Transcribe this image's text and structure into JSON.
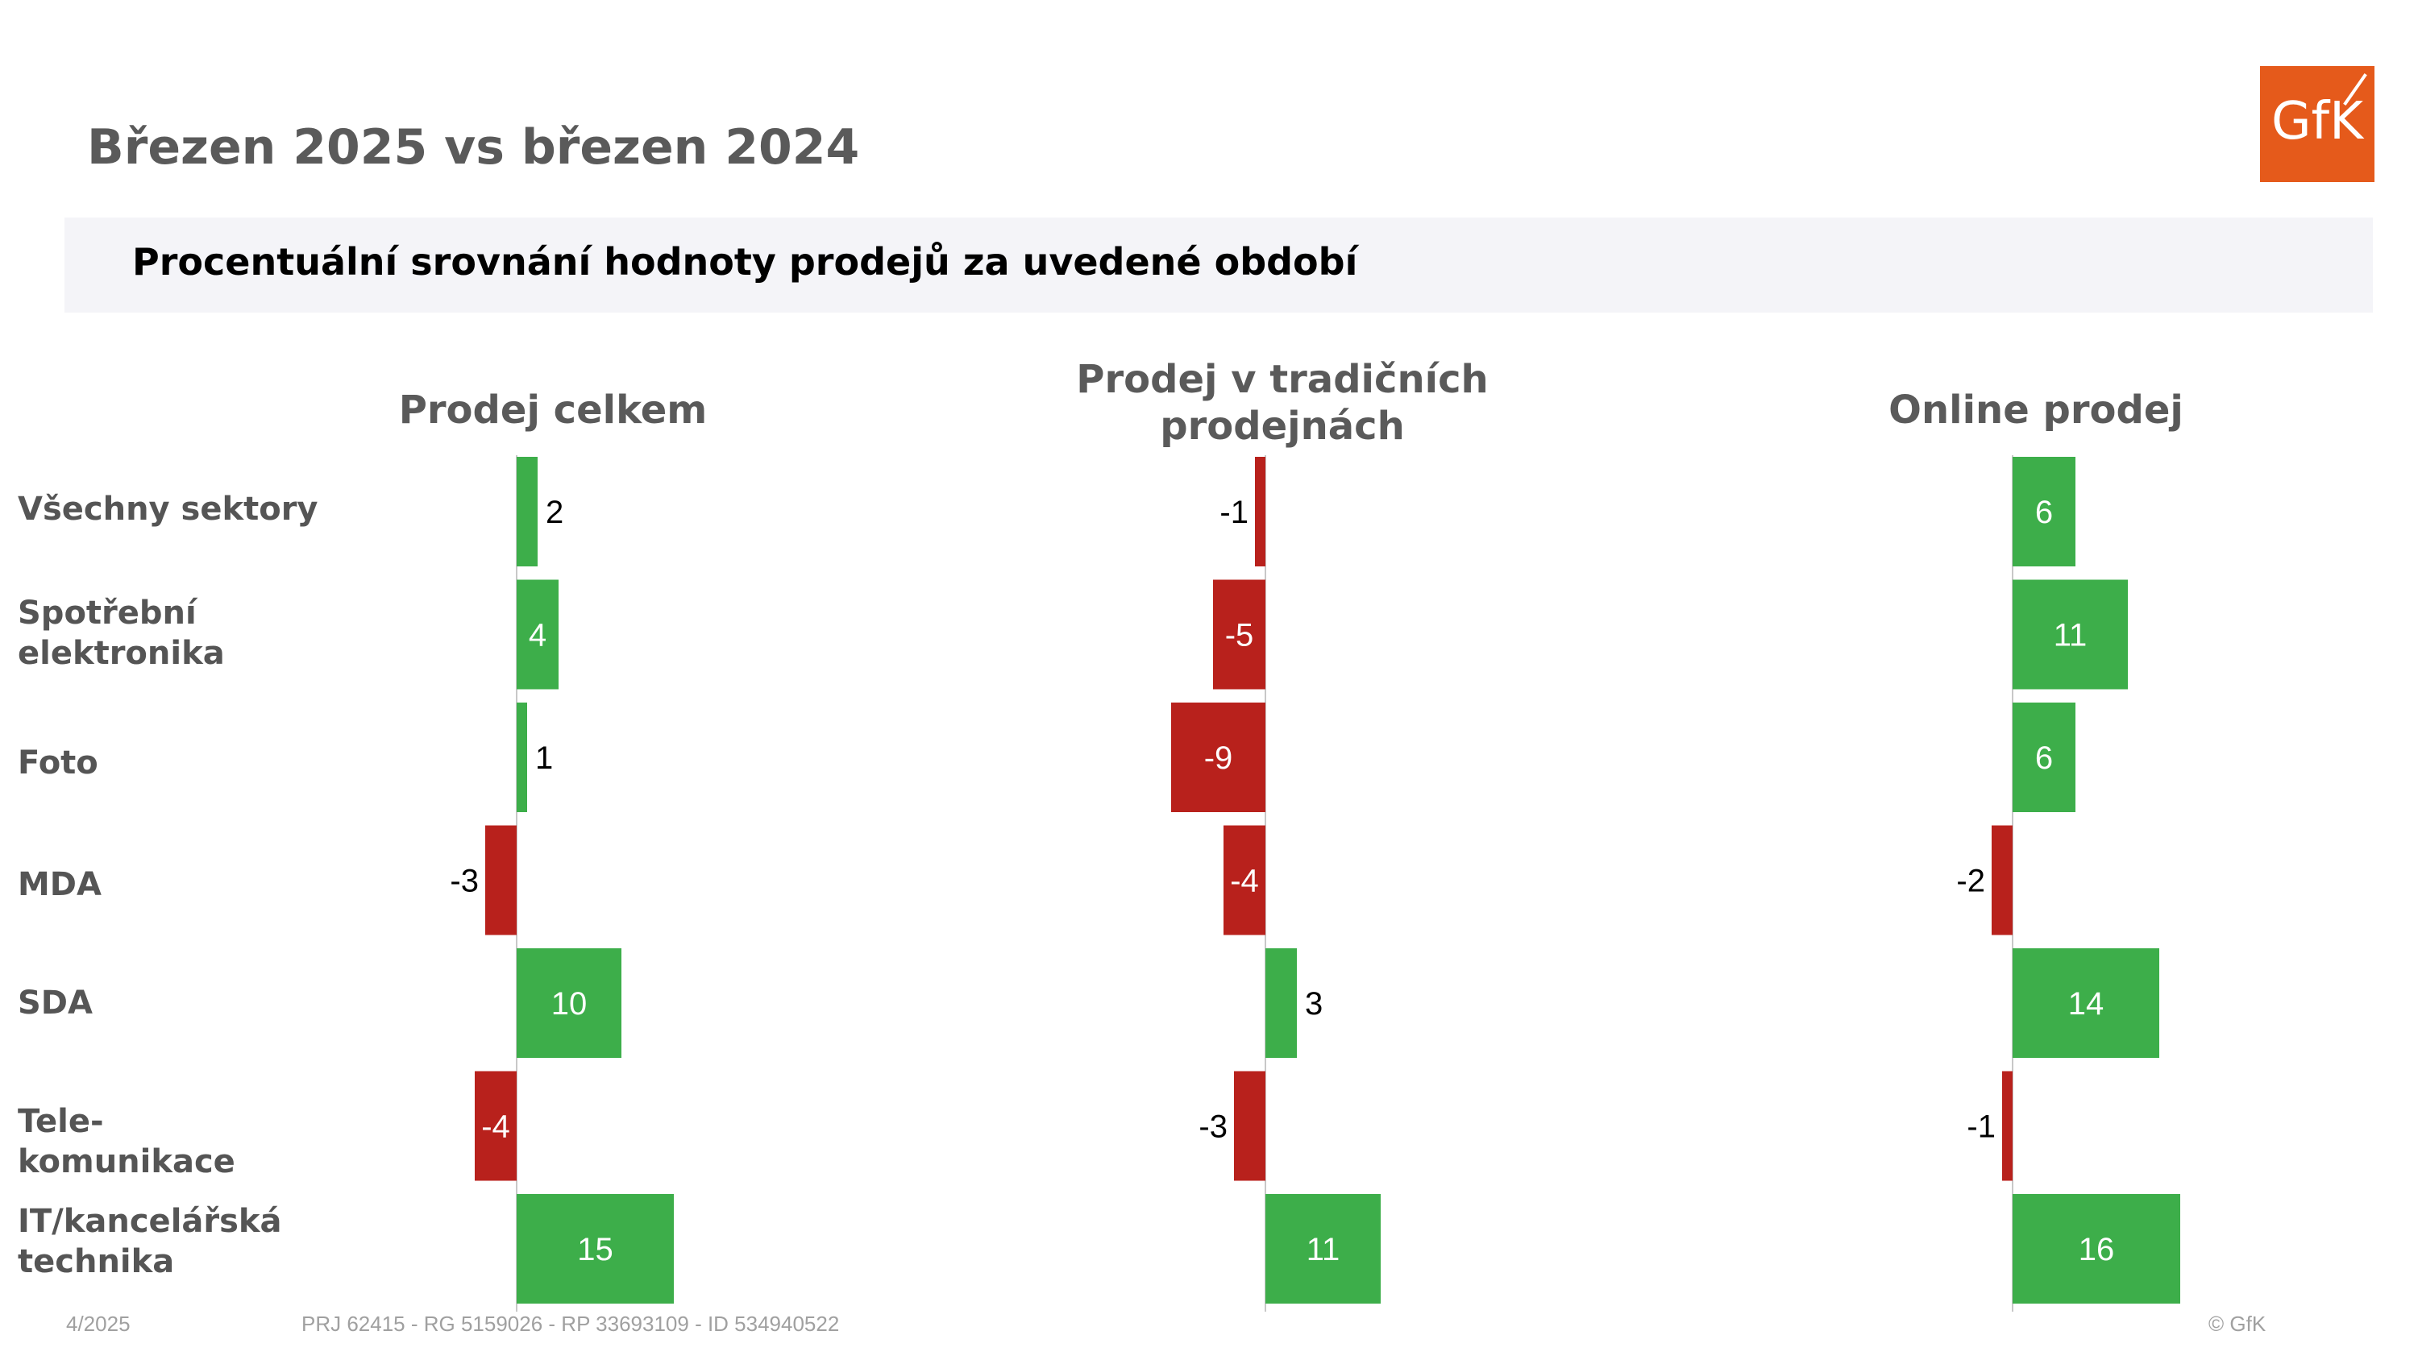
{
  "header": {
    "title": "Březen 2025 vs březen 2024",
    "subtitle": "Procentuální srovnání hodnoty prodejů za uvedené období",
    "logo_text": "GfK"
  },
  "footer": {
    "date": "4/2025",
    "reference": "PRJ 62415 - RG 5159026 - RP 33693109 - ID 534940522",
    "copyright": "© GfK"
  },
  "colors": {
    "positive": "#3dae4a",
    "negative": "#b8211c",
    "logo": "#e55a1b"
  },
  "chart_data": [
    {
      "type": "bar",
      "orientation": "horizontal",
      "title": "Prodej celkem",
      "categories": [
        "Všechny sektory",
        "Spotřební\nelektronika",
        "Foto",
        "MDA",
        "SDA",
        "Tele-\nkomunikace",
        "IT/kancelářská\ntechnika"
      ],
      "values": [
        2,
        4,
        1,
        -3,
        10,
        -4,
        15
      ]
    },
    {
      "type": "bar",
      "orientation": "horizontal",
      "title": "Prodej v tradičních\nprodejnách",
      "categories": [
        "Všechny sektory",
        "Spotřební\nelektronika",
        "Foto",
        "MDA",
        "SDA",
        "Tele-\nkomunikace",
        "IT/kancelářská\ntechnika"
      ],
      "values": [
        -1,
        -5,
        -9,
        -4,
        3,
        -3,
        11
      ]
    },
    {
      "type": "bar",
      "orientation": "horizontal",
      "title": "Online prodej",
      "categories": [
        "Všechny sektory",
        "Spotřební\nelektronika",
        "Foto",
        "MDA",
        "SDA",
        "Tele-\nkomunikace",
        "IT/kancelářská\ntechnika"
      ],
      "values": [
        6,
        11,
        6,
        -2,
        14,
        -1,
        16
      ]
    }
  ]
}
